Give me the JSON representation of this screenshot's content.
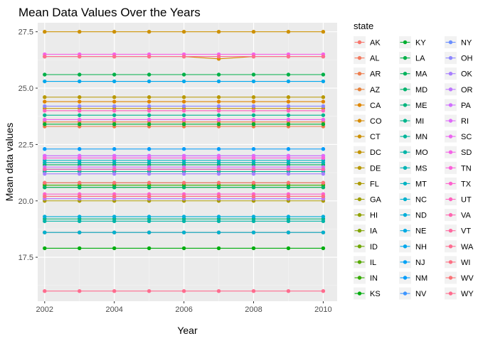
{
  "chart_data": {
    "type": "line",
    "title": "Mean Data Values Over the Years",
    "xlabel": "Year",
    "ylabel": "Mean data values",
    "xlim": [
      2001.8,
      2010.4
    ],
    "ylim": [
      15.55,
      27.9
    ],
    "x_ticks": [
      2002,
      2004,
      2006,
      2008,
      2010
    ],
    "x_tick_labels": [
      "2002",
      "2004",
      "2006",
      "2008",
      "2010"
    ],
    "y_ticks": [
      17.5,
      20.0,
      22.5,
      25.0,
      27.5
    ],
    "y_tick_labels": [
      "17.5",
      "20.0",
      "22.5",
      "25.0",
      "27.5"
    ],
    "grid": true,
    "legend_title": "state",
    "legend_position": "right",
    "years": [
      2002,
      2003,
      2004,
      2005,
      2006,
      2007,
      2008,
      2009,
      2010
    ],
    "series": [
      {
        "name": "AK",
        "color": "#F8766D",
        "values": [
          23.6,
          23.6,
          23.6,
          23.6,
          23.6,
          23.6,
          23.6,
          23.6,
          23.6
        ]
      },
      {
        "name": "AL",
        "color": "#F47A5F",
        "values": [
          18.6,
          18.6,
          18.6,
          18.6,
          18.6,
          18.6,
          18.6,
          18.6,
          18.6
        ]
      },
      {
        "name": "AR",
        "color": "#EE7E4E",
        "values": [
          23.3,
          23.3,
          23.3,
          23.3,
          23.3,
          23.3,
          23.3,
          23.3,
          23.3
        ]
      },
      {
        "name": "AZ",
        "color": "#E7823A",
        "values": [
          23.5,
          23.5,
          23.5,
          23.5,
          23.5,
          23.5,
          23.5,
          23.5,
          23.5
        ]
      },
      {
        "name": "CA",
        "color": "#E08600",
        "values": [
          24.4,
          24.4,
          24.4,
          24.4,
          24.4,
          24.4,
          24.4,
          24.4,
          24.4
        ]
      },
      {
        "name": "CO",
        "color": "#D78B00",
        "values": [
          26.4,
          26.4,
          26.4,
          26.4,
          26.4,
          26.3,
          26.4,
          26.4,
          26.4
        ]
      },
      {
        "name": "CT",
        "color": "#CD9000",
        "values": [
          27.5,
          27.5,
          27.5,
          27.5,
          27.5,
          27.5,
          27.5,
          27.5,
          27.5
        ]
      },
      {
        "name": "DC",
        "color": "#C39400",
        "values": [
          24.1,
          24.1,
          24.1,
          24.1,
          24.1,
          24.1,
          24.1,
          24.1,
          24.1
        ]
      },
      {
        "name": "DE",
        "color": "#B89800",
        "values": [
          24.6,
          24.6,
          24.6,
          24.6,
          24.6,
          24.6,
          24.6,
          24.6,
          24.6
        ]
      },
      {
        "name": "FL",
        "color": "#AC9B00",
        "values": [
          20.0,
          20.0,
          20.0,
          20.0,
          20.0,
          20.0,
          20.0,
          20.0,
          20.0
        ]
      },
      {
        "name": "GA",
        "color": "#9F9F00",
        "values": [
          20.7,
          20.7,
          20.7,
          20.7,
          20.7,
          20.7,
          20.7,
          20.7,
          20.7
        ]
      },
      {
        "name": "HI",
        "color": "#91A200",
        "values": [
          20.6,
          20.6,
          20.6,
          20.6,
          20.6,
          20.6,
          20.6,
          20.6,
          20.6
        ]
      },
      {
        "name": "IA",
        "color": "#81A400",
        "values": [
          21.3,
          21.3,
          21.3,
          21.3,
          21.3,
          21.3,
          21.3,
          21.3,
          21.3
        ]
      },
      {
        "name": "ID",
        "color": "#6EA700",
        "values": [
          20.8,
          20.8,
          20.8,
          20.8,
          20.8,
          20.8,
          20.8,
          20.8,
          20.8
        ]
      },
      {
        "name": "IL",
        "color": "#57A900",
        "values": [
          21.4,
          21.4,
          21.4,
          21.4,
          21.4,
          21.4,
          21.4,
          21.4,
          21.4
        ]
      },
      {
        "name": "IN",
        "color": "#36AB00",
        "values": [
          20.7,
          20.7,
          20.7,
          20.7,
          20.7,
          20.7,
          20.7,
          20.7,
          20.7
        ]
      },
      {
        "name": "KS",
        "color": "#00AD0E",
        "values": [
          17.9,
          17.9,
          17.9,
          17.9,
          17.9,
          17.9,
          17.9,
          17.9,
          17.9
        ]
      },
      {
        "name": "KY",
        "color": "#00AF31",
        "values": [
          23.4,
          23.4,
          23.4,
          23.4,
          23.4,
          23.4,
          23.4,
          23.4,
          23.4
        ]
      },
      {
        "name": "LA",
        "color": "#00B048",
        "values": [
          25.6,
          25.6,
          25.6,
          25.6,
          25.6,
          25.6,
          25.6,
          25.6,
          25.6
        ]
      },
      {
        "name": "MA",
        "color": "#00B25C",
        "values": [
          21.6,
          21.6,
          21.6,
          21.6,
          21.6,
          21.6,
          21.6,
          21.6,
          21.6
        ]
      },
      {
        "name": "MD",
        "color": "#00B36D",
        "values": [
          20.6,
          20.6,
          20.6,
          20.6,
          20.6,
          20.6,
          20.6,
          20.6,
          20.6
        ]
      },
      {
        "name": "ME",
        "color": "#00B47D",
        "values": [
          19.2,
          19.2,
          19.2,
          19.2,
          19.2,
          19.2,
          19.2,
          19.2,
          19.2
        ]
      },
      {
        "name": "MI",
        "color": "#00B58C",
        "values": [
          23.8,
          23.8,
          23.8,
          23.8,
          23.8,
          23.8,
          23.8,
          23.8,
          23.8
        ]
      },
      {
        "name": "MN",
        "color": "#00B59A",
        "values": [
          21.3,
          21.3,
          21.3,
          21.3,
          21.3,
          21.3,
          21.3,
          21.3,
          21.3
        ]
      },
      {
        "name": "MO",
        "color": "#00B5A8",
        "values": [
          19.1,
          19.1,
          19.1,
          19.1,
          19.1,
          19.1,
          19.1,
          19.1,
          19.1
        ]
      },
      {
        "name": "MS",
        "color": "#00B4B5",
        "values": [
          21.7,
          21.7,
          21.7,
          21.7,
          21.7,
          21.7,
          21.7,
          21.7,
          21.7
        ]
      },
      {
        "name": "MT",
        "color": "#00B3C2",
        "values": [
          21.8,
          21.8,
          21.8,
          21.8,
          21.8,
          21.8,
          21.8,
          21.8,
          21.8
        ]
      },
      {
        "name": "NC",
        "color": "#00B1CE",
        "values": [
          18.6,
          18.6,
          18.6,
          18.6,
          18.6,
          18.6,
          18.6,
          18.6,
          18.6
        ]
      },
      {
        "name": "ND",
        "color": "#00AED9",
        "values": [
          19.3,
          19.3,
          19.3,
          19.3,
          19.3,
          19.3,
          19.3,
          19.3,
          19.3
        ]
      },
      {
        "name": "NE",
        "color": "#00ABE3",
        "values": [
          20.1,
          20.1,
          20.1,
          20.1,
          20.1,
          20.1,
          20.1,
          20.1,
          20.1
        ]
      },
      {
        "name": "NH",
        "color": "#00A7EC",
        "values": [
          25.3,
          25.3,
          25.3,
          25.3,
          25.3,
          25.3,
          25.3,
          25.3,
          25.3
        ]
      },
      {
        "name": "NJ",
        "color": "#00A2F5",
        "values": [
          21.4,
          21.4,
          21.4,
          21.4,
          21.4,
          21.4,
          21.4,
          21.4,
          21.4
        ]
      },
      {
        "name": "NM",
        "color": "#009CFB",
        "values": [
          22.3,
          22.3,
          22.3,
          22.3,
          22.3,
          22.3,
          22.3,
          22.3,
          22.3
        ]
      },
      {
        "name": "NV",
        "color": "#3F96FF",
        "values": [
          21.9,
          21.9,
          21.9,
          21.9,
          21.9,
          21.9,
          21.9,
          21.9,
          21.9
        ]
      },
      {
        "name": "NY",
        "color": "#6B8FFF",
        "values": [
          22.0,
          22.0,
          22.0,
          22.0,
          22.0,
          22.0,
          22.0,
          22.0,
          22.0
        ]
      },
      {
        "name": "OH",
        "color": "#8D87FF",
        "values": [
          24.2,
          24.2,
          24.2,
          24.2,
          24.2,
          24.2,
          24.2,
          24.2,
          24.2
        ]
      },
      {
        "name": "OK",
        "color": "#A87FFF",
        "values": [
          21.2,
          21.2,
          21.2,
          21.2,
          21.2,
          21.2,
          21.2,
          21.2,
          21.2
        ]
      },
      {
        "name": "OR",
        "color": "#BE77FF",
        "values": [
          20.1,
          20.1,
          20.1,
          20.1,
          20.1,
          20.1,
          20.1,
          20.1,
          20.1
        ]
      },
      {
        "name": "PA",
        "color": "#D06FFF",
        "values": [
          21.5,
          21.5,
          21.5,
          21.5,
          21.5,
          21.5,
          21.5,
          21.5,
          21.5
        ]
      },
      {
        "name": "RI",
        "color": "#DF6AFA",
        "values": [
          22.0,
          22.0,
          22.0,
          22.0,
          22.0,
          22.0,
          22.0,
          22.0,
          22.0
        ]
      },
      {
        "name": "SC",
        "color": "#EB65F1",
        "values": [
          23.6,
          23.6,
          23.6,
          23.6,
          23.6,
          23.6,
          23.6,
          23.6,
          23.6
        ]
      },
      {
        "name": "SD",
        "color": "#F563E7",
        "values": [
          26.5,
          26.5,
          26.5,
          26.5,
          26.5,
          26.5,
          26.5,
          26.5,
          26.5
        ]
      },
      {
        "name": "TN",
        "color": "#FC61DB",
        "values": [
          21.9,
          21.9,
          21.9,
          21.9,
          21.9,
          21.9,
          21.9,
          21.9,
          21.9
        ]
      },
      {
        "name": "TX",
        "color": "#FF61CE",
        "values": [
          20.3,
          20.3,
          20.3,
          20.3,
          20.3,
          20.3,
          20.3,
          20.3,
          20.3
        ]
      },
      {
        "name": "UT",
        "color": "#FF63BF",
        "values": [
          24.0,
          24.0,
          24.0,
          24.0,
          24.0,
          24.0,
          24.0,
          24.0,
          24.0
        ]
      },
      {
        "name": "VA",
        "color": "#FF66B0",
        "values": [
          21.4,
          21.4,
          21.4,
          21.4,
          21.4,
          21.4,
          21.4,
          21.4,
          21.4
        ]
      },
      {
        "name": "VT",
        "color": "#FF69A0",
        "values": [
          20.2,
          20.2,
          20.2,
          20.2,
          20.2,
          20.2,
          20.2,
          20.2,
          20.2
        ]
      },
      {
        "name": "WA",
        "color": "#FF6C91",
        "values": [
          26.4,
          26.4,
          26.4,
          26.4,
          26.4,
          26.4,
          26.4,
          26.4,
          26.4
        ]
      },
      {
        "name": "WI",
        "color": "#FD6F83",
        "values": [
          20.2,
          20.2,
          20.2,
          20.2,
          20.2,
          20.2,
          20.2,
          20.2,
          20.2
        ]
      },
      {
        "name": "WV",
        "color": "#FB7276",
        "values": [
          20.8,
          20.8,
          20.8,
          20.8,
          20.8,
          20.8,
          20.8,
          20.8,
          20.8
        ]
      },
      {
        "name": "WY",
        "color": "#FF6C8E",
        "values": [
          16.0,
          16.0,
          16.0,
          16.0,
          16.0,
          16.0,
          16.0,
          16.0,
          16.0
        ]
      }
    ]
  }
}
